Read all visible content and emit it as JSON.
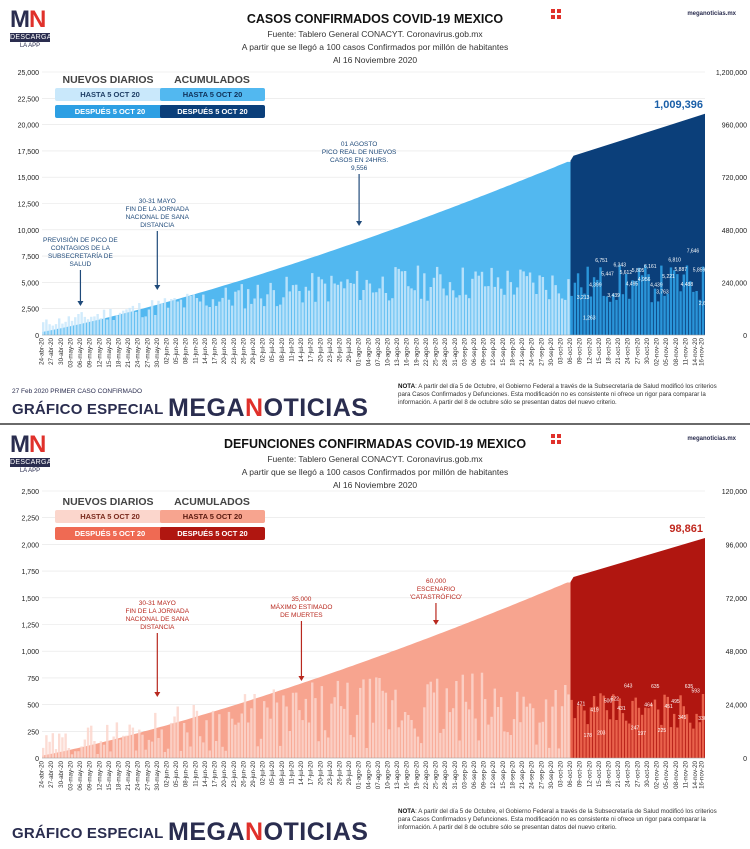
{
  "brand": {
    "logo_text_m": "M",
    "logo_text_n": "N",
    "logo_band": "DESCARGA",
    "logo_sub": "LA APP",
    "site": "meganoticias.mx",
    "special_label": "GRÁFICO ESPECIAL",
    "brand_mega": "MEGA",
    "brand_n": "N",
    "brand_rest": "OTICIAS",
    "icon": "grid-icon"
  },
  "colors": {
    "cases_light": "#52b8f0",
    "cases_dark": "#0b3f7a",
    "cases_pale": "#c9e8fb",
    "cases_mid": "#2d9fe3",
    "deaths_light": "#f7a48f",
    "deaths_dark": "#b01610",
    "deaths_pale": "#fbd6cc",
    "deaths_mid": "#ef6a53"
  },
  "note": {
    "label": "NOTA",
    "text": "A partir del día 5 de Octubre, el Gobierno Federal a través de la Subsecretaría de Salud modificó los criterios para Casos Confirmados y Defunciones. Esta modificación no es consistente ni ofrece un rigor para comparar la información. A partir del 8 de octubre sólo se presentan datos del nuevo criterio."
  },
  "legend": {
    "daily_header": "NUEVOS DIARIOS",
    "cumulative_header": "ACUMULADOS",
    "before_label": "HASTA 5 OCT 20",
    "after_label": "DESPUÉS 5 OCT 20"
  },
  "first_case": "27 Feb 2020 PRIMER CASO CONFIRMADO",
  "chart_data": [
    {
      "type": "bar",
      "title": "CASOS CONFIRMADOS COVID-19 MEXICO",
      "source": "Fuente: Tablero General CONACYT. Coronavirus.gob.mx",
      "subtitle": "A partir que se llegó a 100 casos Confirmados por millón de habitantes",
      "date_line": "Al 16 Noviembre 2020",
      "ylim_left": [
        0,
        25000
      ],
      "yticks_left": [
        "0",
        "2,500",
        "5,000",
        "7,500",
        "10,000",
        "12,500",
        "15,000",
        "17,500",
        "20,000",
        "22,500",
        "25,000"
      ],
      "ylim_right": [
        0,
        1200000
      ],
      "yticks_right": [
        "0",
        "240,000",
        "480,000",
        "720,000",
        "960,000",
        "1,200,000"
      ],
      "x_tick_labels": [
        "24-abr-20",
        "27-abr-20",
        "30-abr-20",
        "03-may-20",
        "06-may-20",
        "09-may-20",
        "12-may-20",
        "15-may-20",
        "18-may-20",
        "21-may-20",
        "24-may-20",
        "27-may-20",
        "30-may-20",
        "02-jun-20",
        "05-jun-20",
        "08-jun-20",
        "11-jun-20",
        "14-jun-20",
        "17-jun-20",
        "20-jun-20",
        "23-jun-20",
        "26-jun-20",
        "29-jun-20",
        "02-jul-20",
        "05-jul-20",
        "08-jul-20",
        "11-jul-20",
        "14-jul-20",
        "17-jul-20",
        "20-jul-20",
        "23-jul-20",
        "26-jul-20",
        "29-jul-20",
        "01-ago-20",
        "04-ago-20",
        "07-ago-20",
        "10-ago-20",
        "13-ago-20",
        "16-ago-20",
        "19-ago-20",
        "22-ago-20",
        "25-ago-20",
        "28-ago-20",
        "31-ago-20",
        "03-sep-20",
        "06-sep-20",
        "09-sep-20",
        "12-sep-20",
        "15-sep-20",
        "18-sep-20",
        "21-sep-20",
        "24-sep-20",
        "27-sep-20",
        "30-sep-20",
        "03-oct-20",
        "06-oct-20",
        "09-oct-20",
        "12-oct-20",
        "15-oct-20",
        "18-oct-20",
        "21-oct-20",
        "24-oct-20",
        "27-oct-20",
        "30-oct-20",
        "02-nov-20",
        "05-nov-20",
        "08-nov-20",
        "11-nov-20",
        "14-nov-20",
        "16-nov-20"
      ],
      "cumulative_total_label": "1,009,396",
      "cumulative_endpoints": {
        "start": 13842,
        "oct5": 789780,
        "oct6": 794608,
        "end": 1009396
      },
      "daily_shape": {
        "start": 1100,
        "oct5": 5000,
        "pre_noise": 0.35
      },
      "daily_post_oct_labels": [
        "3,213",
        "1,263",
        "4,399",
        "6,751",
        "5,447",
        "3,439",
        "6,343",
        "5,612",
        "4,495",
        "5,805",
        "4,956",
        "6,161",
        "4,439",
        "3,763",
        "5,221",
        "6,810",
        "5,887",
        "4,488",
        "7,646",
        "5,859",
        "2,674"
      ],
      "annotations": [
        {
          "text": [
            "PREVISIÓN DE PICO DE",
            "CONTAGIOS DE LA",
            "SUBSECRETARÍA DE",
            "SALUD"
          ],
          "x": "06-may-20"
        },
        {
          "text": [
            "30-31 MAYO",
            "FIN DE LA JORNADA",
            "NACIONAL DE SANA",
            "DISTANCIA"
          ],
          "x": "30-may-20"
        },
        {
          "text": [
            "01 AGOSTO",
            "PICO REAL DE NUEVOS",
            "CASOS EN 24HRS.",
            "9,556"
          ],
          "x": "01-ago-20"
        }
      ]
    },
    {
      "type": "bar",
      "title": "DEFUNCIONES CONFIRMADAS COVID-19 MEXICO",
      "source": "Fuente: Tablero General CONACYT. Coronavirus.gob.mx",
      "subtitle": "A partir que se llegó a 100 casos Confirmados por millón de habitantes",
      "date_line": "Al 16 Noviembre 2020",
      "ylim_left": [
        0,
        2500
      ],
      "yticks_left": [
        "0",
        "250",
        "500",
        "750",
        "1,000",
        "1,250",
        "1,500",
        "1,750",
        "2,000",
        "2,250",
        "2,500"
      ],
      "ylim_right": [
        0,
        120000
      ],
      "yticks_right": [
        "0",
        "24,000",
        "48,000",
        "72,000",
        "96,000",
        "120,000"
      ],
      "x_tick_labels": [
        "24-abr-20",
        "27-abr-20",
        "30-abr-20",
        "03-may-20",
        "06-may-20",
        "09-may-20",
        "12-may-20",
        "15-may-20",
        "18-may-20",
        "21-may-20",
        "24-may-20",
        "27-may-20",
        "30-may-20",
        "02-jun-20",
        "05-jun-20",
        "08-jun-20",
        "11-jun-20",
        "14-jun-20",
        "17-jun-20",
        "20-jun-20",
        "23-jun-20",
        "26-jun-20",
        "29-jun-20",
        "02-jul-20",
        "05-jul-20",
        "08-jul-20",
        "11-jul-20",
        "14-jul-20",
        "17-jul-20",
        "20-jul-20",
        "23-jul-20",
        "26-jul-20",
        "29-jul-20",
        "01-ago-20",
        "04-ago-20",
        "07-ago-20",
        "10-ago-20",
        "13-ago-20",
        "16-ago-20",
        "19-ago-20",
        "22-ago-20",
        "25-ago-20",
        "28-ago-20",
        "31-ago-20",
        "03-sep-20",
        "06-sep-20",
        "09-sep-20",
        "12-sep-20",
        "15-sep-20",
        "18-sep-20",
        "21-sep-20",
        "24-sep-20",
        "27-sep-20",
        "30-sep-20",
        "03-oct-20",
        "06-oct-20",
        "09-oct-20",
        "12-oct-20",
        "15-oct-20",
        "18-oct-20",
        "21-oct-20",
        "24-oct-20",
        "27-oct-20",
        "30-oct-20",
        "02-nov-20",
        "05-nov-20",
        "08-nov-20",
        "11-nov-20",
        "14-nov-20",
        "16-nov-20"
      ],
      "cumulative_total_label": "98,861",
      "cumulative_endpoints": {
        "start": 1069,
        "oct5": 78880,
        "oct6": 79088,
        "end": 98861
      },
      "daily_shape": {
        "start": 120,
        "oct5": 450,
        "pre_noise": 0.8
      },
      "daily_post_oct_labels": [
        "471",
        "178",
        "419",
        "203",
        "500",
        "522",
        "431",
        "643",
        "247",
        "197",
        "464",
        "635",
        "225",
        "451",
        "495",
        "345",
        "635",
        "593",
        "336"
      ],
      "annotations": [
        {
          "text": [
            "30-31 MAYO",
            "FIN DE LA JORNADA",
            "NACIONAL DE SANA",
            "DISTANCIA"
          ],
          "x": "30-may-20"
        },
        {
          "text": [
            "35,000",
            "MÁXIMO ESTIMADO",
            "DE MUERTES"
          ],
          "x": "14-jul-20"
        },
        {
          "text": [
            "60,000",
            "ESCENARIO",
            "'CATASTRÓFICO'"
          ],
          "x": "25-ago-20"
        }
      ]
    }
  ]
}
